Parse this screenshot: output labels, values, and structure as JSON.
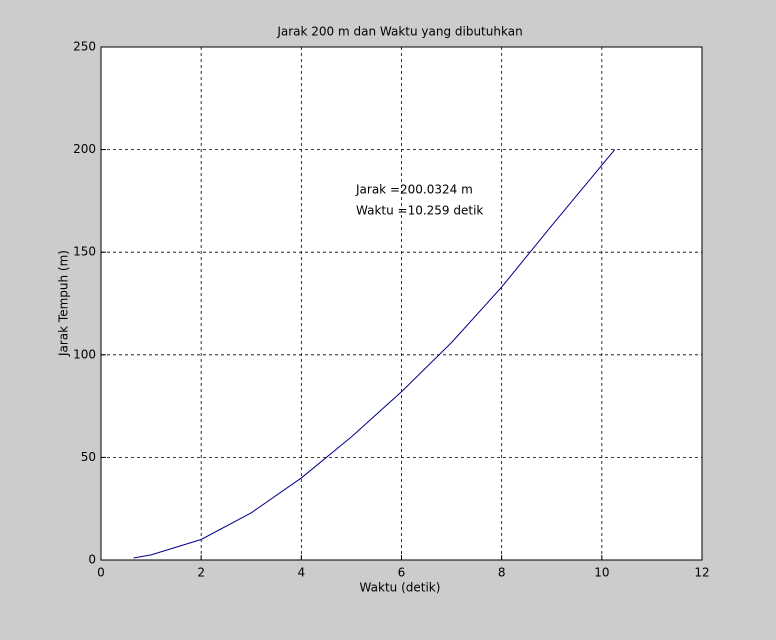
{
  "chart_data": {
    "type": "line",
    "title": "Jarak 200 m dan Waktu yang dibutuhkan",
    "xlabel": "Waktu (detik)",
    "ylabel": "Jarak Tempuh (m)",
    "x": [
      0.65,
      1,
      2,
      3,
      4,
      5,
      6,
      7,
      8,
      9,
      10.259
    ],
    "series": [
      {
        "color": "#00008b",
        "values": [
          1,
          2.5,
          10,
          23,
          40,
          60,
          82,
          106,
          133,
          163,
          200.0324
        ]
      }
    ],
    "xlim": [
      0,
      12
    ],
    "xticks": [
      0,
      2,
      4,
      6,
      8,
      10,
      12
    ],
    "ylim": [
      0,
      250
    ],
    "yticks": [
      0,
      50,
      100,
      150,
      200,
      250
    ],
    "grid": true,
    "annotations": [
      "Jarak =200.0324 m",
      "Waktu =10.259 detik"
    ]
  }
}
